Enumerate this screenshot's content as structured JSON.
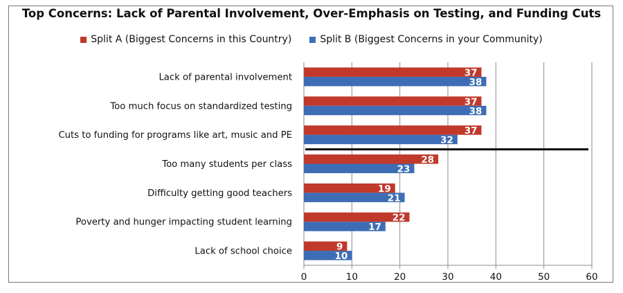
{
  "chart_data": {
    "type": "bar",
    "orientation": "horizontal",
    "title": "Top Concerns: Lack of Parental Involvement, Over-Emphasis on Testing, and Funding Cuts",
    "categories": [
      "Lack of parental involvement",
      "Too much focus on standardized testing",
      "Cuts to funding for programs like art, music and PE",
      "Too many students per class",
      "Difficulty getting good teachers",
      "Poverty and hunger impacting student learning",
      "Lack of school choice"
    ],
    "series": [
      {
        "name": "Split A (Biggest Concerns in this Country)",
        "color": "#c0392b",
        "values": [
          37,
          37,
          37,
          28,
          19,
          22,
          9
        ]
      },
      {
        "name": "Split B (Biggest Concerns in your Community)",
        "color": "#3d6db5",
        "values": [
          38,
          38,
          32,
          23,
          21,
          17,
          10
        ]
      }
    ],
    "xlim": [
      0,
      60
    ],
    "xticks": [
      0,
      10,
      20,
      30,
      40,
      50,
      60
    ],
    "grid": true,
    "legend_position": "top",
    "separator_after_category": 2
  }
}
